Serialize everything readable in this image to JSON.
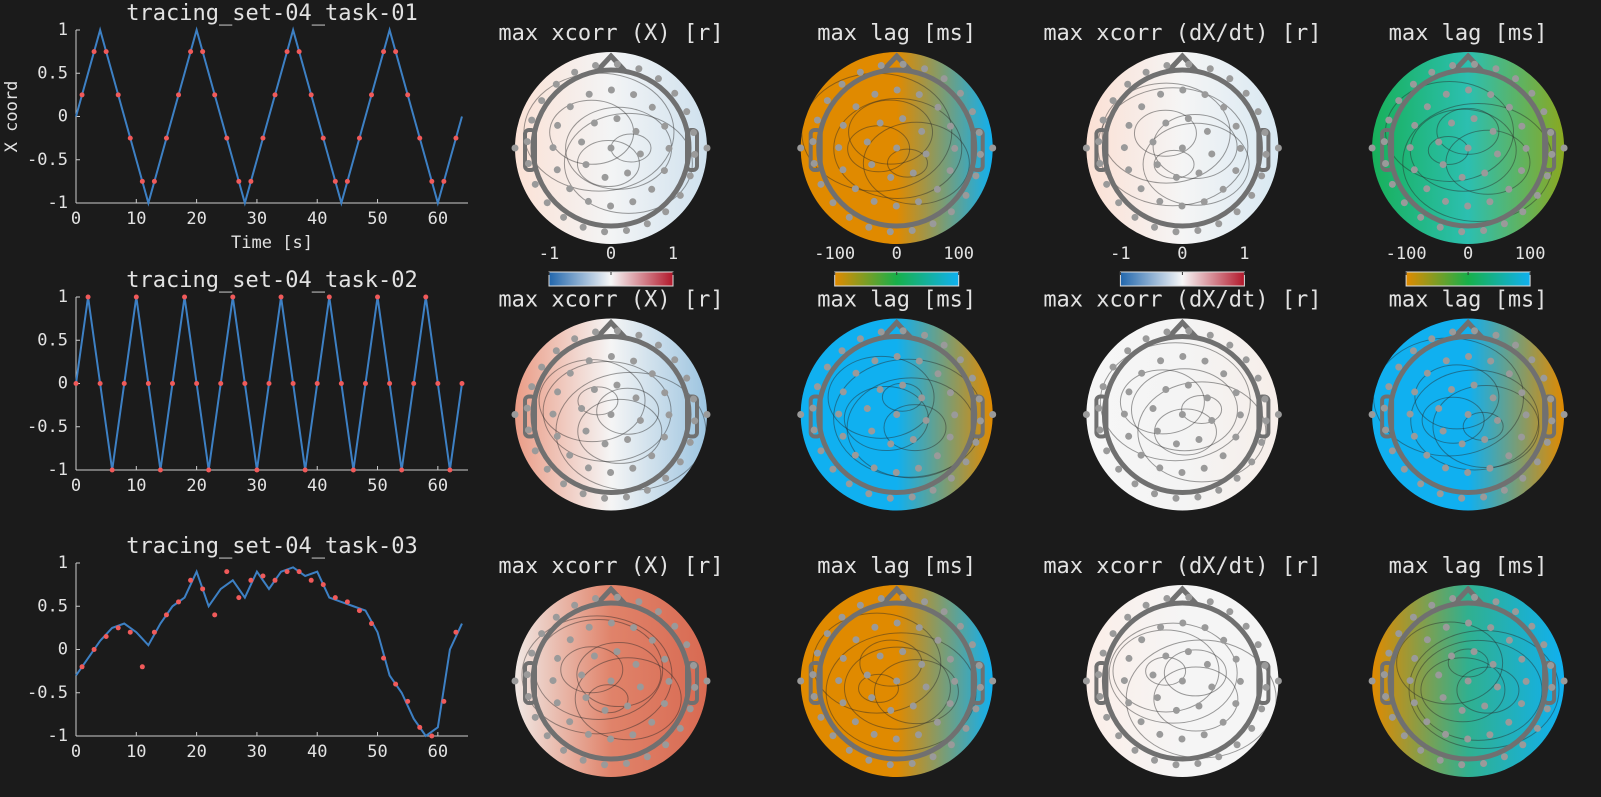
{
  "chart_data": [
    {
      "type": "line",
      "title": "tracing_set-04_task-01",
      "xlabel": "Time [s]",
      "ylabel": "X coord",
      "xlim": [
        0,
        65
      ],
      "ylim": [
        -1,
        1
      ],
      "xticks": [
        0,
        10,
        20,
        30,
        40,
        50,
        60
      ],
      "yticks": [
        -1,
        -0.5,
        0,
        0.5,
        1
      ],
      "series": [
        {
          "color": "#3d80c4",
          "style": "line",
          "x": [
            0,
            2,
            4,
            6,
            8,
            10,
            12,
            14,
            16,
            18,
            20,
            22,
            24,
            26,
            28,
            30,
            32,
            34,
            36,
            38,
            40,
            42,
            44,
            46,
            48,
            50,
            52,
            54,
            56,
            58,
            60,
            62,
            64
          ],
          "values": [
            0,
            0.5,
            1,
            0.5,
            0,
            -0.5,
            -1,
            -0.5,
            0,
            0.5,
            1,
            0.5,
            0,
            -0.5,
            -1,
            -0.5,
            0,
            0.5,
            1,
            0.5,
            0,
            -0.5,
            -1,
            -0.5,
            0,
            0.5,
            1,
            0.5,
            0,
            -0.5,
            -1,
            -0.5,
            0
          ]
        },
        {
          "color": "#f05a5a",
          "style": "dots",
          "x": [
            1,
            3,
            5,
            7,
            9,
            11,
            13,
            15,
            17,
            19,
            21,
            23,
            25,
            27,
            29,
            31,
            33,
            35,
            37,
            39,
            41,
            43,
            45,
            47,
            49,
            51,
            53,
            55,
            57,
            59,
            61,
            63
          ],
          "values": [
            0.25,
            0.75,
            0.75,
            0.25,
            -0.25,
            -0.75,
            -0.75,
            -0.25,
            0.25,
            0.75,
            0.75,
            0.25,
            -0.25,
            -0.75,
            -0.75,
            -0.25,
            0.25,
            0.75,
            0.75,
            0.25,
            -0.25,
            -0.75,
            -0.75,
            -0.25,
            0.25,
            0.75,
            0.75,
            0.25,
            -0.25,
            -0.75,
            -0.75,
            -0.25
          ]
        }
      ]
    },
    {
      "type": "line",
      "title": "tracing_set-04_task-02",
      "xlim": [
        0,
        65
      ],
      "ylim": [
        -1,
        1
      ],
      "xticks": [
        0,
        10,
        20,
        30,
        40,
        50,
        60
      ],
      "yticks": [
        -1,
        -0.5,
        0,
        0.5,
        1
      ],
      "series": [
        {
          "color": "#3d80c4",
          "style": "line",
          "x": [
            0,
            1,
            2,
            3,
            4,
            5,
            6,
            7,
            8,
            9,
            10,
            11,
            12,
            13,
            14,
            15,
            16,
            17,
            18,
            19,
            20,
            21,
            22,
            23,
            24,
            25,
            26,
            27,
            28,
            29,
            30,
            31,
            32,
            33,
            34,
            35,
            36,
            37,
            38,
            39,
            40,
            41,
            42,
            43,
            44,
            45,
            46,
            47,
            48,
            49,
            50,
            51,
            52,
            53,
            54,
            55,
            56,
            57,
            58,
            59,
            60,
            61,
            62,
            63,
            64
          ],
          "values": [
            0,
            0.5,
            1,
            0.5,
            0,
            -0.5,
            -1,
            -0.5,
            0,
            0.5,
            1,
            0.5,
            0,
            -0.5,
            -1,
            -0.5,
            0,
            0.5,
            1,
            0.5,
            0,
            -0.5,
            -1,
            -0.5,
            0,
            0.5,
            1,
            0.5,
            0,
            -0.5,
            -1,
            -0.5,
            0,
            0.5,
            1,
            0.5,
            0,
            -0.5,
            -1,
            -0.5,
            0,
            0.5,
            1,
            0.5,
            0,
            -0.5,
            -1,
            -0.5,
            0,
            0.5,
            1,
            0.5,
            0,
            -0.5,
            -1,
            -0.5,
            0,
            0.5,
            1,
            0.5,
            0,
            -0.5,
            -1,
            -0.5,
            0
          ]
        },
        {
          "color": "#f05a5a",
          "style": "dots",
          "x": [
            0,
            2,
            4,
            6,
            8,
            10,
            12,
            14,
            16,
            18,
            20,
            22,
            24,
            26,
            28,
            30,
            32,
            34,
            36,
            38,
            40,
            42,
            44,
            46,
            48,
            50,
            52,
            54,
            56,
            58,
            60,
            62,
            64
          ],
          "values": [
            0,
            1,
            0,
            -1,
            0,
            1,
            0,
            -1,
            0,
            1,
            0,
            -1,
            0,
            1,
            0,
            -1,
            0,
            1,
            0,
            -1,
            0,
            1,
            0,
            -1,
            0,
            1,
            0,
            -1,
            0,
            1,
            0,
            -1,
            0
          ]
        }
      ]
    },
    {
      "type": "line",
      "title": "tracing_set-04_task-03",
      "xlim": [
        0,
        65
      ],
      "ylim": [
        -1,
        1
      ],
      "xticks": [
        0,
        10,
        20,
        30,
        40,
        50,
        60
      ],
      "yticks": [
        -1,
        -0.5,
        0,
        0.5,
        1
      ],
      "series": [
        {
          "color": "#3d80c4",
          "style": "line",
          "x": [
            0,
            2,
            4,
            6,
            8,
            10,
            12,
            14,
            16,
            18,
            20,
            22,
            24,
            26,
            28,
            30,
            32,
            34,
            36,
            38,
            40,
            42,
            44,
            46,
            48,
            50,
            52,
            54,
            56,
            58,
            60,
            62,
            64
          ],
          "values": [
            -0.3,
            -0.1,
            0.1,
            0.25,
            0.3,
            0.2,
            0.05,
            0.3,
            0.5,
            0.6,
            0.9,
            0.5,
            0.7,
            0.8,
            0.6,
            0.9,
            0.7,
            0.9,
            0.95,
            0.85,
            0.9,
            0.6,
            0.55,
            0.5,
            0.45,
            0.2,
            -0.3,
            -0.5,
            -0.8,
            -1,
            -0.9,
            0,
            0.3
          ]
        },
        {
          "color": "#f05a5a",
          "style": "dots",
          "x": [
            1,
            3,
            5,
            7,
            9,
            11,
            13,
            15,
            17,
            19,
            21,
            23,
            25,
            27,
            29,
            31,
            33,
            35,
            37,
            39,
            41,
            43,
            45,
            47,
            49,
            51,
            53,
            55,
            57,
            59,
            61,
            63
          ],
          "values": [
            -0.2,
            0,
            0.15,
            0.25,
            0.2,
            -0.2,
            0.2,
            0.4,
            0.55,
            0.8,
            0.7,
            0.4,
            0.9,
            0.6,
            0.8,
            0.85,
            0.8,
            0.9,
            0.9,
            0.8,
            0.75,
            0.6,
            0.55,
            0.45,
            0.3,
            -0.1,
            -0.4,
            -0.6,
            -0.9,
            -1,
            -0.6,
            0.2
          ]
        }
      ]
    },
    {
      "type": "topomap",
      "title": "max xcorr (X) [r]",
      "colors": [
        "#fbe2d6",
        "#f3f4f5",
        "#cfe1ee"
      ],
      "clim": [
        -1,
        1
      ],
      "cticks": [
        -1,
        0,
        1
      ],
      "colormap": [
        "#2166ac",
        "#f7f7f7",
        "#b2182b"
      ]
    },
    {
      "type": "topomap",
      "title": "max lag [ms]",
      "colors": [
        "#e08a00",
        "#e08a00",
        "#10b0f0"
      ],
      "clim": [
        -100,
        100
      ],
      "cticks": [
        -100,
        0,
        100
      ],
      "colormap": [
        "#e08a00",
        "#17b04a",
        "#10b0f0"
      ]
    },
    {
      "type": "topomap",
      "title": "max xcorr (dX/dt) [r]",
      "colors": [
        "#fbe0d4",
        "#f5f5f5",
        "#d8e8f2"
      ],
      "clim": [
        -1,
        1
      ],
      "cticks": [
        -1,
        0,
        1
      ],
      "colormap": [
        "#2166ac",
        "#f7f7f7",
        "#b2182b"
      ]
    },
    {
      "type": "topomap",
      "title": "max lag [ms]",
      "colors": [
        "#18b05a",
        "#2cbfb0",
        "#8aa820"
      ],
      "clim": [
        -100,
        100
      ],
      "cticks": [
        -100,
        0,
        100
      ],
      "colormap": [
        "#e08a00",
        "#17b04a",
        "#10b0f0"
      ]
    },
    {
      "type": "topomap",
      "title": "max xcorr (X) [r]",
      "colors": [
        "#ea9c86",
        "#f5f5f5",
        "#9cc4e0"
      ]
    },
    {
      "type": "topomap",
      "title": "max lag [ms]",
      "colors": [
        "#10b0f0",
        "#10b0f0",
        "#e08a00"
      ]
    },
    {
      "type": "topomap",
      "title": "max xcorr (dX/dt) [r]",
      "colors": [
        "#f6f6f6",
        "#f4f4f4",
        "#f6eee9"
      ]
    },
    {
      "type": "topomap",
      "title": "max lag [ms]",
      "colors": [
        "#10b0f0",
        "#10b0f0",
        "#e08a00"
      ]
    },
    {
      "type": "topomap",
      "title": "max xcorr (X) [r]",
      "colors": [
        "#f0e8e4",
        "#e0836a",
        "#d86a52"
      ]
    },
    {
      "type": "topomap",
      "title": "max lag [ms]",
      "colors": [
        "#e08a00",
        "#e08a00",
        "#10b0f0"
      ]
    },
    {
      "type": "topomap",
      "title": "max xcorr (dX/dt) [r]",
      "colors": [
        "#fbeee8",
        "#f5f5f5",
        "#f5f5f5"
      ]
    },
    {
      "type": "topomap",
      "title": "max lag [ms]",
      "colors": [
        "#e08a00",
        "#30b090",
        "#10b0f0"
      ]
    }
  ]
}
